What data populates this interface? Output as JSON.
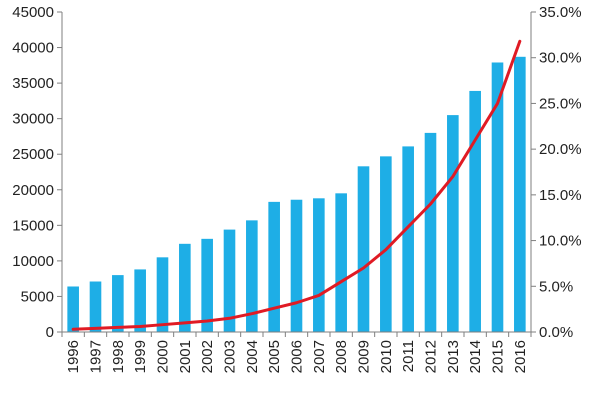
{
  "chart_data": {
    "type": "bar",
    "title": "",
    "xlabel": "",
    "ylabel": "",
    "y2label": "",
    "categories": [
      "1996",
      "1997",
      "1998",
      "1999",
      "2000",
      "2001",
      "2002",
      "2003",
      "2004",
      "2005",
      "2006",
      "2007",
      "2008",
      "2009",
      "2010",
      "2011",
      "2012",
      "2013",
      "2014",
      "2015",
      "2016"
    ],
    "series": [
      {
        "type": "bar",
        "axis": "left",
        "values": [
          6400,
          7100,
          8000,
          8800,
          10500,
          12400,
          13100,
          14400,
          15700,
          18300,
          18600,
          18800,
          19500,
          23300,
          24700,
          26100,
          28000,
          30500,
          33900,
          37900,
          38700
        ]
      },
      {
        "type": "line",
        "axis": "right",
        "values": [
          0.3,
          0.4,
          0.5,
          0.6,
          0.8,
          1.0,
          1.2,
          1.5,
          2.0,
          2.6,
          3.2,
          4.0,
          5.5,
          7.0,
          9.0,
          11.5,
          14.0,
          17.0,
          21.0,
          25.0,
          31.8
        ]
      }
    ],
    "y_left": {
      "min": 0,
      "max": 45000,
      "step": 5000,
      "ticks": [
        "0",
        "5000",
        "10000",
        "15000",
        "20000",
        "25000",
        "30000",
        "35000",
        "40000",
        "45000"
      ]
    },
    "y_right": {
      "min": 0,
      "max": 35,
      "step": 5,
      "ticks": [
        "0.0%",
        "5.0%",
        "10.0%",
        "15.0%",
        "20.0%",
        "25.0%",
        "30.0%",
        "35.0%"
      ]
    },
    "grid": false,
    "legend": "none",
    "colors": {
      "bar": "#1EAEE6",
      "line": "#E01B24",
      "axis": "#7f7f7f",
      "text": "#222222"
    }
  }
}
